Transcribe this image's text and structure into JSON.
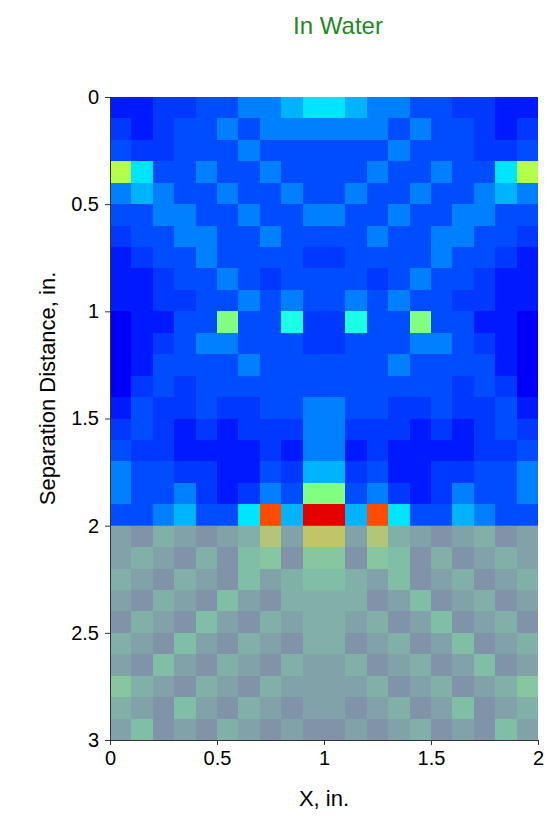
{
  "chart_data": {
    "type": "heatmap",
    "title": "In Water",
    "xlabel": "X, in.",
    "ylabel": "Separation Distance, in.",
    "xlim": [
      0,
      2
    ],
    "ylim": [
      0,
      3
    ],
    "xticks": [
      0,
      0.5,
      1,
      1.5,
      2
    ],
    "yticks": [
      0,
      0.5,
      1,
      1.5,
      2,
      2.5,
      3
    ],
    "zlim": [
      0,
      1
    ],
    "shaded_ylim": [
      2,
      3
    ],
    "x": [
      0.05,
      0.15,
      0.25,
      0.35,
      0.45,
      0.55,
      0.65,
      0.75,
      0.85,
      0.95,
      1.05,
      1.15,
      1.25,
      1.35,
      1.45,
      1.55,
      1.65,
      1.75,
      1.85,
      1.95
    ],
    "y": [
      0.05,
      0.15,
      0.25,
      0.35,
      0.45,
      0.55,
      0.65,
      0.75,
      0.85,
      0.95,
      1.05,
      1.15,
      1.25,
      1.35,
      1.45,
      1.55,
      1.65,
      1.75,
      1.85,
      1.95,
      2.05,
      2.15,
      2.25,
      2.35,
      2.45,
      2.55,
      2.65,
      2.75,
      2.85,
      2.95
    ],
    "values": [
      [
        0.15,
        0.15,
        0.18,
        0.18,
        0.2,
        0.2,
        0.25,
        0.25,
        0.3,
        0.35,
        0.35,
        0.3,
        0.25,
        0.25,
        0.2,
        0.2,
        0.18,
        0.18,
        0.15,
        0.15
      ],
      [
        0.18,
        0.15,
        0.18,
        0.2,
        0.2,
        0.25,
        0.2,
        0.25,
        0.25,
        0.25,
        0.25,
        0.25,
        0.25,
        0.2,
        0.25,
        0.2,
        0.2,
        0.18,
        0.15,
        0.18
      ],
      [
        0.2,
        0.18,
        0.18,
        0.2,
        0.2,
        0.2,
        0.25,
        0.2,
        0.2,
        0.2,
        0.2,
        0.2,
        0.2,
        0.25,
        0.2,
        0.2,
        0.2,
        0.18,
        0.18,
        0.2
      ],
      [
        0.55,
        0.35,
        0.2,
        0.2,
        0.25,
        0.2,
        0.2,
        0.25,
        0.2,
        0.2,
        0.2,
        0.2,
        0.25,
        0.2,
        0.2,
        0.25,
        0.2,
        0.2,
        0.35,
        0.55
      ],
      [
        0.25,
        0.3,
        0.25,
        0.2,
        0.2,
        0.25,
        0.2,
        0.2,
        0.25,
        0.2,
        0.2,
        0.25,
        0.2,
        0.2,
        0.25,
        0.2,
        0.2,
        0.25,
        0.3,
        0.25
      ],
      [
        0.2,
        0.2,
        0.25,
        0.25,
        0.2,
        0.2,
        0.25,
        0.2,
        0.2,
        0.25,
        0.25,
        0.2,
        0.2,
        0.25,
        0.2,
        0.2,
        0.25,
        0.25,
        0.2,
        0.2
      ],
      [
        0.18,
        0.2,
        0.2,
        0.25,
        0.25,
        0.2,
        0.2,
        0.25,
        0.2,
        0.2,
        0.2,
        0.2,
        0.25,
        0.2,
        0.2,
        0.25,
        0.25,
        0.2,
        0.2,
        0.18
      ],
      [
        0.15,
        0.18,
        0.2,
        0.2,
        0.25,
        0.2,
        0.2,
        0.2,
        0.2,
        0.18,
        0.18,
        0.2,
        0.2,
        0.2,
        0.2,
        0.25,
        0.2,
        0.2,
        0.18,
        0.15
      ],
      [
        0.15,
        0.15,
        0.18,
        0.2,
        0.2,
        0.25,
        0.2,
        0.18,
        0.2,
        0.2,
        0.2,
        0.2,
        0.18,
        0.2,
        0.25,
        0.2,
        0.2,
        0.18,
        0.15,
        0.15
      ],
      [
        0.15,
        0.15,
        0.18,
        0.18,
        0.2,
        0.2,
        0.25,
        0.2,
        0.25,
        0.2,
        0.2,
        0.25,
        0.2,
        0.25,
        0.2,
        0.2,
        0.18,
        0.18,
        0.15,
        0.15
      ],
      [
        0.12,
        0.15,
        0.15,
        0.2,
        0.2,
        0.5,
        0.2,
        0.2,
        0.4,
        0.18,
        0.18,
        0.4,
        0.2,
        0.2,
        0.5,
        0.2,
        0.2,
        0.15,
        0.15,
        0.12
      ],
      [
        0.12,
        0.15,
        0.18,
        0.2,
        0.25,
        0.25,
        0.2,
        0.2,
        0.2,
        0.18,
        0.18,
        0.2,
        0.2,
        0.2,
        0.25,
        0.25,
        0.2,
        0.18,
        0.15,
        0.12
      ],
      [
        0.12,
        0.15,
        0.2,
        0.2,
        0.2,
        0.2,
        0.25,
        0.2,
        0.2,
        0.2,
        0.2,
        0.2,
        0.2,
        0.25,
        0.2,
        0.2,
        0.2,
        0.2,
        0.15,
        0.12
      ],
      [
        0.12,
        0.18,
        0.2,
        0.18,
        0.2,
        0.2,
        0.2,
        0.2,
        0.2,
        0.2,
        0.2,
        0.2,
        0.2,
        0.2,
        0.2,
        0.2,
        0.18,
        0.2,
        0.18,
        0.12
      ],
      [
        0.15,
        0.2,
        0.18,
        0.18,
        0.2,
        0.18,
        0.18,
        0.2,
        0.2,
        0.25,
        0.25,
        0.2,
        0.2,
        0.18,
        0.18,
        0.2,
        0.18,
        0.18,
        0.2,
        0.15
      ],
      [
        0.18,
        0.2,
        0.18,
        0.15,
        0.18,
        0.15,
        0.18,
        0.18,
        0.18,
        0.25,
        0.25,
        0.18,
        0.18,
        0.18,
        0.15,
        0.18,
        0.15,
        0.18,
        0.2,
        0.18
      ],
      [
        0.2,
        0.18,
        0.18,
        0.15,
        0.15,
        0.15,
        0.15,
        0.18,
        0.15,
        0.25,
        0.25,
        0.15,
        0.18,
        0.15,
        0.15,
        0.15,
        0.15,
        0.18,
        0.18,
        0.2
      ],
      [
        0.25,
        0.2,
        0.2,
        0.18,
        0.18,
        0.15,
        0.15,
        0.2,
        0.18,
        0.3,
        0.3,
        0.18,
        0.2,
        0.15,
        0.15,
        0.18,
        0.18,
        0.2,
        0.2,
        0.25
      ],
      [
        0.25,
        0.2,
        0.2,
        0.25,
        0.18,
        0.15,
        0.18,
        0.25,
        0.2,
        0.5,
        0.5,
        0.2,
        0.25,
        0.18,
        0.15,
        0.18,
        0.25,
        0.2,
        0.2,
        0.25
      ],
      [
        0.2,
        0.2,
        0.25,
        0.3,
        0.2,
        0.2,
        0.35,
        0.8,
        0.3,
        0.9,
        0.9,
        0.3,
        0.8,
        0.35,
        0.2,
        0.2,
        0.3,
        0.25,
        0.2,
        0.2
      ],
      [
        0.25,
        0.2,
        0.3,
        0.25,
        0.2,
        0.25,
        0.3,
        0.55,
        0.25,
        0.6,
        0.6,
        0.25,
        0.55,
        0.3,
        0.25,
        0.2,
        0.25,
        0.3,
        0.2,
        0.25
      ],
      [
        0.25,
        0.3,
        0.25,
        0.2,
        0.3,
        0.2,
        0.35,
        0.4,
        0.2,
        0.4,
        0.4,
        0.2,
        0.4,
        0.35,
        0.2,
        0.3,
        0.2,
        0.25,
        0.3,
        0.25
      ],
      [
        0.3,
        0.25,
        0.2,
        0.3,
        0.25,
        0.2,
        0.35,
        0.25,
        0.3,
        0.35,
        0.35,
        0.3,
        0.25,
        0.35,
        0.2,
        0.25,
        0.3,
        0.2,
        0.25,
        0.3
      ],
      [
        0.25,
        0.2,
        0.3,
        0.25,
        0.2,
        0.35,
        0.25,
        0.2,
        0.3,
        0.3,
        0.3,
        0.3,
        0.2,
        0.25,
        0.35,
        0.2,
        0.25,
        0.3,
        0.2,
        0.25
      ],
      [
        0.2,
        0.3,
        0.25,
        0.2,
        0.35,
        0.25,
        0.2,
        0.3,
        0.25,
        0.3,
        0.3,
        0.25,
        0.3,
        0.2,
        0.25,
        0.35,
        0.2,
        0.25,
        0.3,
        0.2
      ],
      [
        0.3,
        0.25,
        0.2,
        0.35,
        0.25,
        0.2,
        0.3,
        0.25,
        0.2,
        0.3,
        0.3,
        0.2,
        0.25,
        0.3,
        0.2,
        0.25,
        0.35,
        0.2,
        0.25,
        0.3
      ],
      [
        0.25,
        0.2,
        0.35,
        0.25,
        0.2,
        0.3,
        0.25,
        0.2,
        0.3,
        0.25,
        0.25,
        0.3,
        0.2,
        0.25,
        0.3,
        0.2,
        0.25,
        0.35,
        0.2,
        0.25
      ],
      [
        0.4,
        0.3,
        0.25,
        0.2,
        0.3,
        0.25,
        0.2,
        0.3,
        0.25,
        0.25,
        0.25,
        0.25,
        0.3,
        0.2,
        0.25,
        0.3,
        0.2,
        0.25,
        0.3,
        0.4
      ],
      [
        0.3,
        0.25,
        0.2,
        0.35,
        0.25,
        0.2,
        0.3,
        0.25,
        0.2,
        0.25,
        0.25,
        0.2,
        0.25,
        0.3,
        0.2,
        0.25,
        0.35,
        0.2,
        0.25,
        0.3
      ],
      [
        0.25,
        0.35,
        0.2,
        0.25,
        0.2,
        0.3,
        0.25,
        0.2,
        0.25,
        0.2,
        0.2,
        0.25,
        0.2,
        0.25,
        0.3,
        0.2,
        0.25,
        0.2,
        0.35,
        0.25
      ]
    ]
  }
}
